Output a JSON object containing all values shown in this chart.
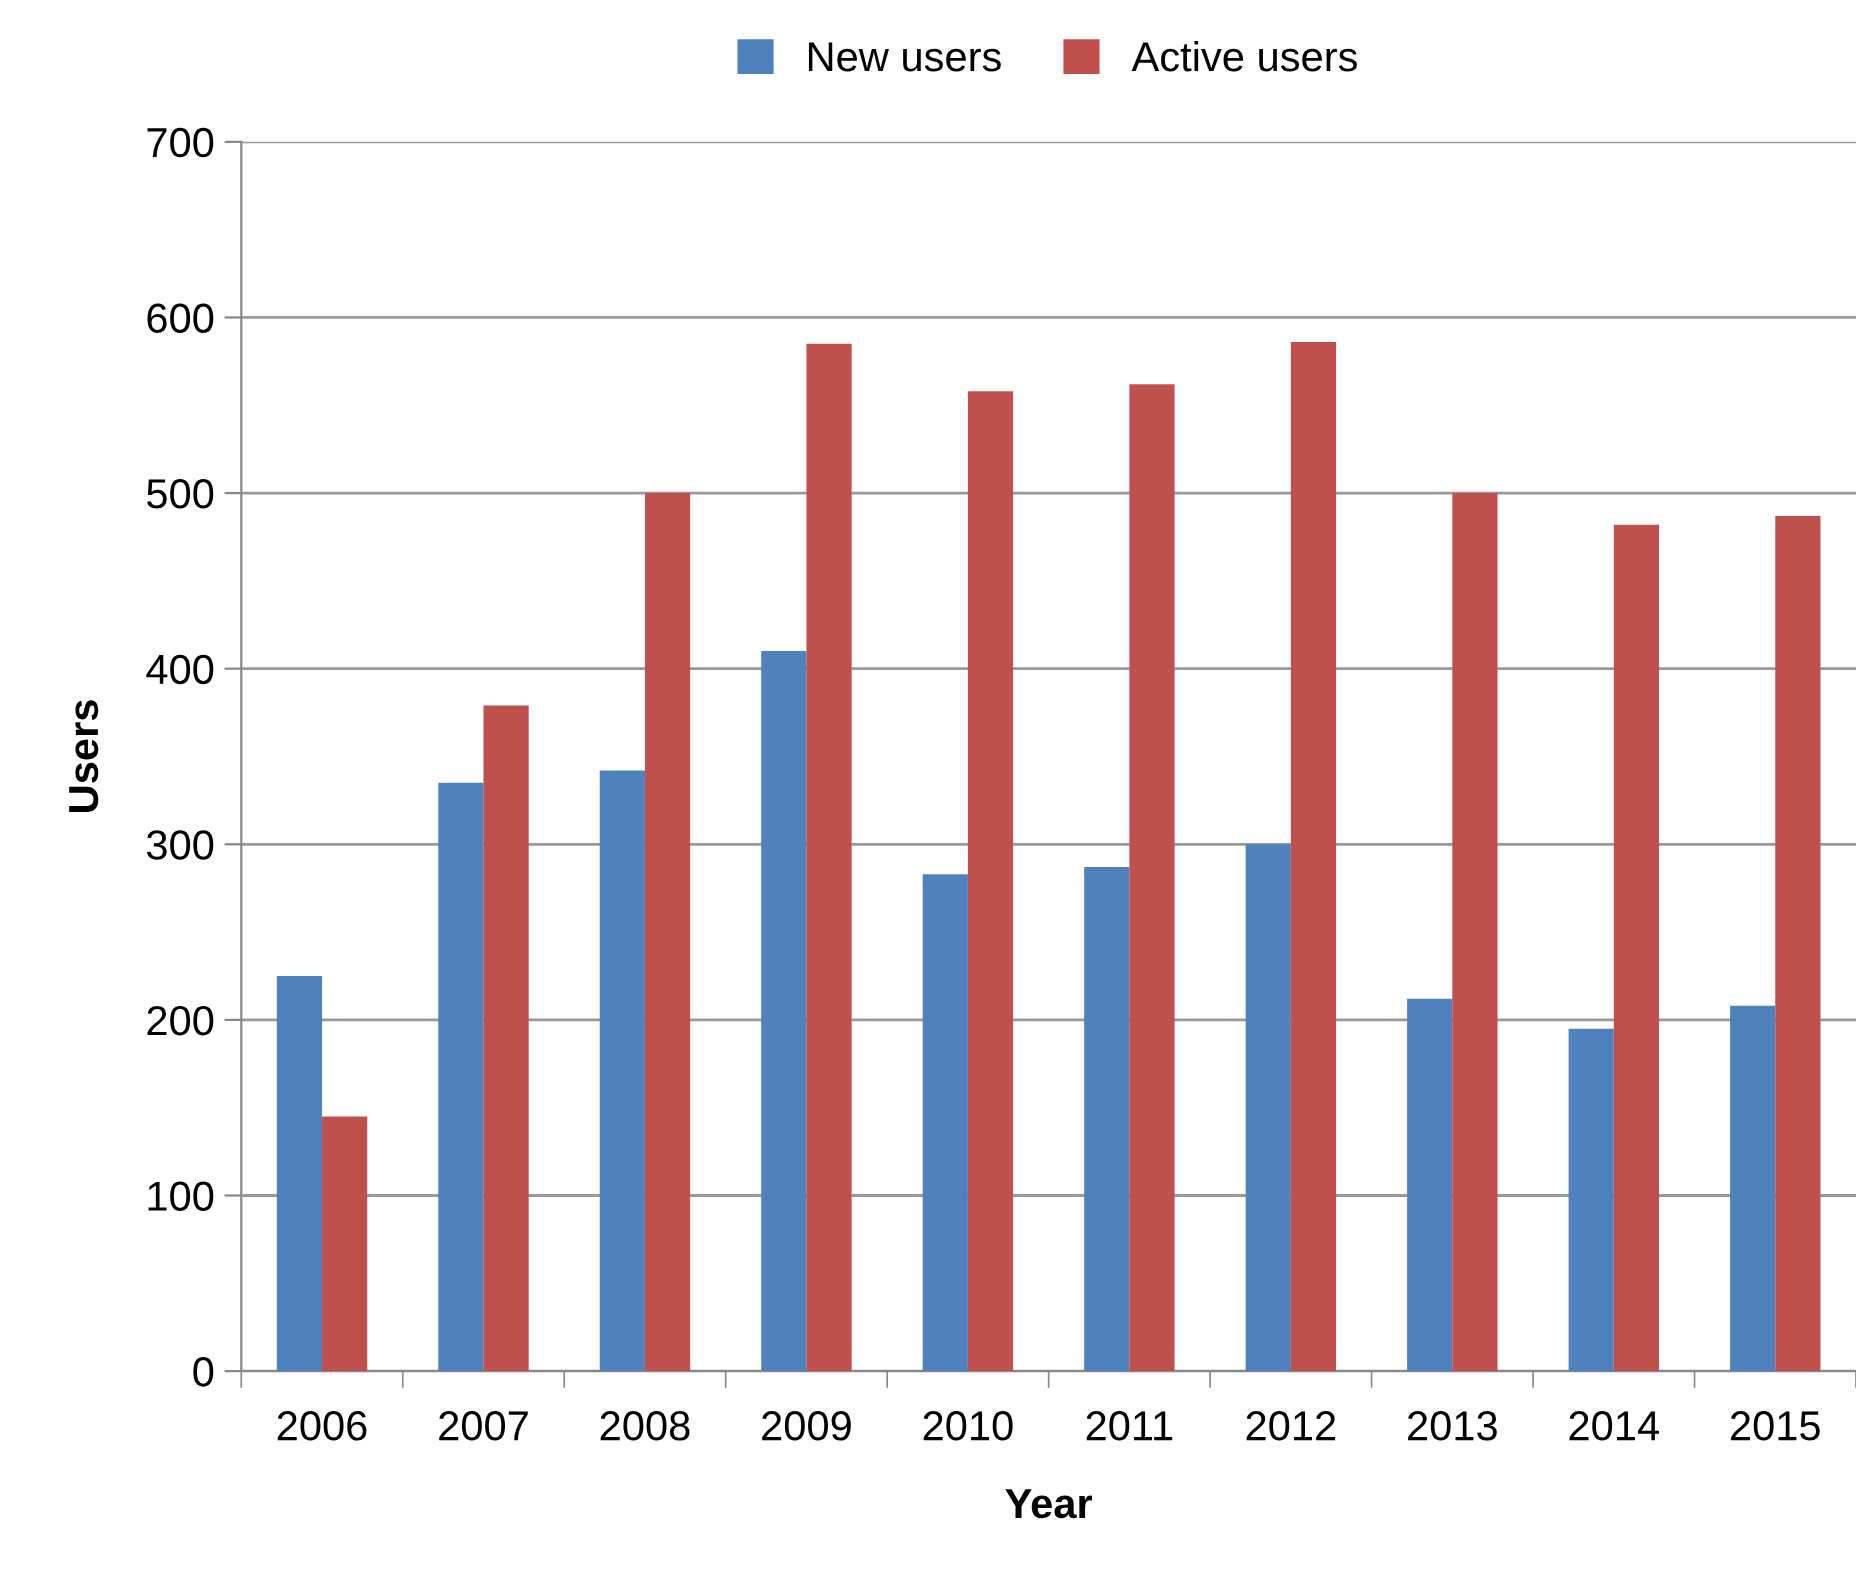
{
  "chart_data": {
    "type": "bar",
    "xlabel": "Year",
    "ylabel": "Users",
    "categories": [
      "2006",
      "2007",
      "2008",
      "2009",
      "2010",
      "2011",
      "2012",
      "2013",
      "2014",
      "2015"
    ],
    "series": [
      {
        "name": "New users",
        "color": "#4f81bd",
        "values": [
          225,
          335,
          342,
          410,
          283,
          287,
          300,
          212,
          195,
          208
        ]
      },
      {
        "name": "Active users",
        "color": "#c0504d",
        "values": [
          145,
          379,
          500,
          585,
          558,
          562,
          586,
          500,
          482,
          487
        ]
      }
    ],
    "ylim": [
      0,
      700
    ],
    "yticks": [
      0,
      100,
      200,
      300,
      400,
      500,
      600,
      700
    ],
    "grid": "y",
    "legend": "top"
  }
}
